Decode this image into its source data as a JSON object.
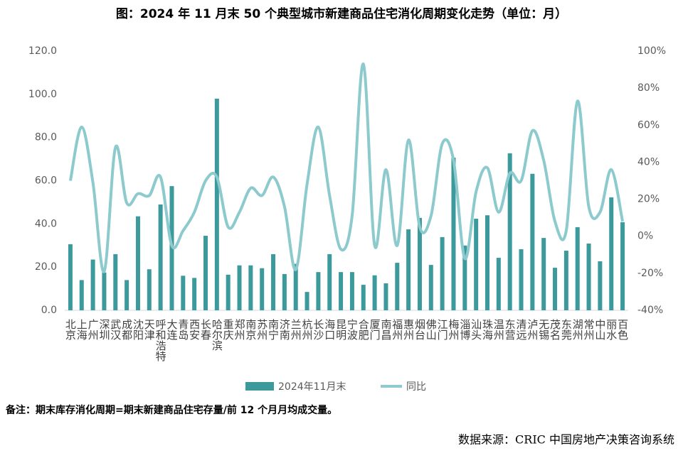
{
  "chart_data": {
    "type": "bar-line",
    "title": "图：2024 年 11 月末 50 个典型城市新建商品住宅消化周期变化走势（单位：月）",
    "categories": [
      "北京",
      "上海",
      "广州",
      "深圳",
      "武汉",
      "成都",
      "沈阳",
      "天津",
      "呼和浩特",
      "大连",
      "青岛",
      "西安",
      "长春",
      "哈尔滨",
      "重庆",
      "郑州",
      "南京",
      "苏州",
      "南宁",
      "济南",
      "兰州",
      "杭州",
      "长沙",
      "海口",
      "昆明",
      "宁波",
      "合肥",
      "厦门",
      "南昌",
      "福州",
      "惠州",
      "烟台",
      "佛山",
      "江门",
      "梅州",
      "淄博",
      "汕头",
      "珠海",
      "温州",
      "东营",
      "清远",
      "泸州",
      "无锡",
      "茂名",
      "东莞",
      "湖州",
      "常州",
      "中山",
      "丽水",
      "百色"
    ],
    "series": [
      {
        "name": "2024年11月末",
        "type": "bar",
        "color": "#3c9a9c",
        "values": [
          30.6,
          14,
          23.5,
          17.5,
          26,
          14,
          43.5,
          19,
          49,
          57.5,
          16,
          15,
          34.5,
          98,
          16.5,
          20.8,
          20.8,
          19.5,
          26,
          16.8,
          21.5,
          8.5,
          17.7,
          26,
          17.7,
          17.7,
          11.8,
          16.2,
          12.5,
          22,
          37.5,
          42.8,
          21,
          33.9,
          70.7,
          30,
          42.4,
          44,
          24.3,
          72.7,
          28.3,
          63.2,
          33.5,
          19.7,
          27.6,
          38.5,
          30.9,
          22.7,
          52.3,
          40.8
        ]
      },
      {
        "name": "同比",
        "type": "line",
        "axis": "y2",
        "color": "#8ccacd",
        "values": [
          30,
          59,
          29,
          -19,
          48,
          18,
          23,
          22,
          32,
          -5,
          3,
          13,
          30,
          32,
          5,
          13,
          26,
          22,
          32,
          16,
          -18,
          28,
          59,
          22,
          -7,
          11,
          93,
          -5,
          36,
          -5,
          52,
          5,
          11,
          50,
          41,
          -12,
          24,
          37,
          13,
          34,
          30,
          57,
          41,
          8,
          3,
          73,
          16,
          13,
          36,
          8
        ]
      }
    ],
    "ylim": [
      0,
      120
    ],
    "yticks": [
      {
        "value": 0,
        "label": "0.0"
      },
      {
        "value": 20,
        "label": "20.0"
      },
      {
        "value": 40,
        "label": "40.0"
      },
      {
        "value": 60,
        "label": "60.0"
      },
      {
        "value": 80,
        "label": "80.0"
      },
      {
        "value": 100,
        "label": "100.0"
      },
      {
        "value": 120,
        "label": "120.0"
      }
    ],
    "y2lim": [
      -40,
      100
    ],
    "y2ticks": [
      {
        "value": -40,
        "label": "-40%"
      },
      {
        "value": -20,
        "label": "-20%"
      },
      {
        "value": 0,
        "label": "0%"
      },
      {
        "value": 20,
        "label": "20%"
      },
      {
        "value": 40,
        "label": "40%"
      },
      {
        "value": 60,
        "label": "60%"
      },
      {
        "value": 80,
        "label": "80%"
      },
      {
        "value": 100,
        "label": "100%"
      }
    ],
    "note": "备注：期末库存消化周期=期末新建商品住宅存量/前 12 个月月均成交量。",
    "source": "数据来源：CRIC 中国房地产决策咨询系统"
  }
}
